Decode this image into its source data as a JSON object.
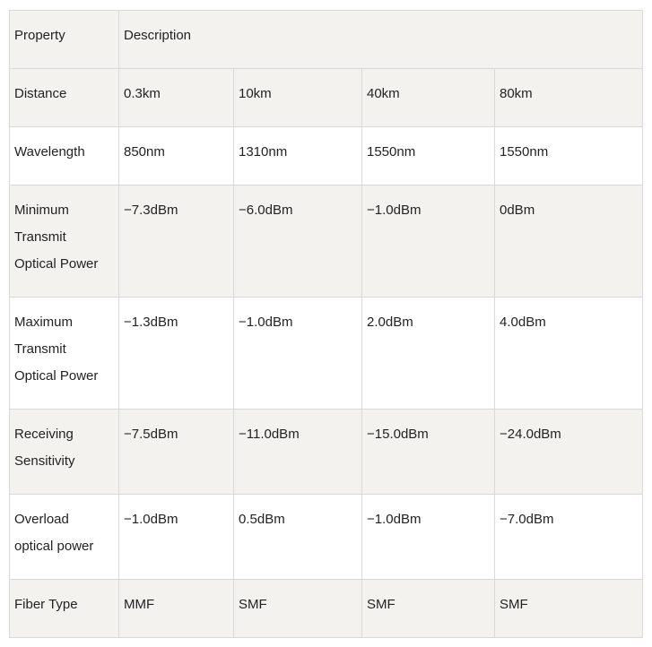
{
  "table": {
    "header": {
      "property": "Property",
      "description": "Description"
    },
    "rows": [
      {
        "label": "Distance",
        "values": [
          "0.3km",
          "10km",
          "40km",
          "80km"
        ]
      },
      {
        "label": "Wavelength",
        "values": [
          "850nm",
          "1310nm",
          "1550nm",
          "1550nm"
        ]
      },
      {
        "label_lines": [
          "Minimum",
          "Transmit",
          "Optical Power"
        ],
        "values": [
          "−7.3dBm",
          "−6.0dBm",
          "−1.0dBm",
          "0dBm"
        ]
      },
      {
        "label_lines": [
          "Maximum",
          "Transmit",
          "Optical Power"
        ],
        "values": [
          "−1.3dBm",
          "−1.0dBm",
          "2.0dBm",
          "4.0dBm"
        ]
      },
      {
        "label_lines": [
          "Receiving",
          "Sensitivity"
        ],
        "values": [
          "−7.5dBm",
          "−11.0dBm",
          "−15.0dBm",
          "−24.0dBm"
        ]
      },
      {
        "label_lines": [
          "Overload",
          "optical power"
        ],
        "values": [
          "−1.0dBm",
          "0.5dBm",
          "−1.0dBm",
          "−7.0dBm"
        ]
      },
      {
        "label": "Fiber Type",
        "values": [
          "MMF",
          "SMF",
          "SMF",
          "SMF"
        ]
      }
    ]
  },
  "colors": {
    "shaded_row": "#f3f2ee",
    "border": "#d9d9d9",
    "text": "#222222"
  }
}
